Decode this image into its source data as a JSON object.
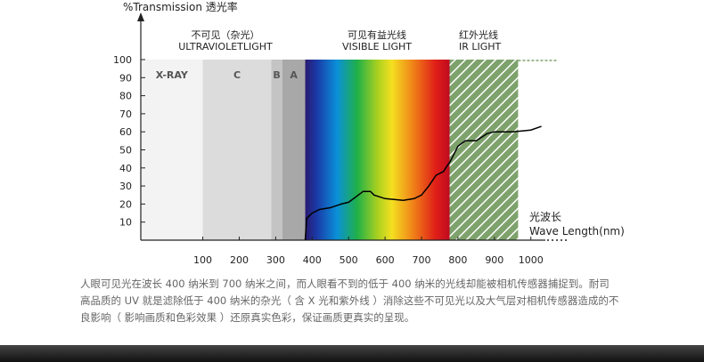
{
  "chart_data": {
    "type": "line",
    "y_label": "%Transmission 透光率",
    "x_label_lines": [
      "光波长",
      "Wave Length(nm)"
    ],
    "headers": [
      [
        "不可见（杂光）",
        "ULTRAVIOLETLIGHT"
      ],
      [
        "可见有益光线",
        "VISIBLE LIGHT"
      ],
      [
        "红外光线",
        "IR LIGHT"
      ]
    ],
    "regions": [
      {
        "label": "X-RAY",
        "start": -70,
        "end": 100,
        "color": "#f3f3f3"
      },
      {
        "label": "C",
        "start": 100,
        "end": 288,
        "color": "#dcdcdc"
      },
      {
        "label": "B",
        "start": 288,
        "end": 318,
        "color": "#c4c4c4"
      },
      {
        "label": "A",
        "start": 318,
        "end": 381,
        "color": "#a8a8a8"
      }
    ],
    "spectrum": {
      "start": 381,
      "end": 777
    },
    "ir": {
      "start": 777,
      "end": 965,
      "color": "#7ea26c"
    },
    "x": [
      381,
      385,
      400,
      420,
      450,
      480,
      500,
      520,
      540,
      560,
      570,
      600,
      650,
      680,
      700,
      720,
      740,
      760,
      780,
      800,
      820,
      850,
      880,
      900,
      950,
      1000,
      1029
    ],
    "values": [
      0,
      12,
      15,
      17,
      18,
      20,
      21,
      24,
      27,
      27,
      25,
      23,
      22,
      23,
      25,
      30,
      36,
      38,
      44,
      52,
      55,
      55,
      59,
      60,
      60,
      61,
      63
    ],
    "color": "#000000",
    "xlim": [
      -70,
      1250
    ],
    "ylim": [
      0,
      100
    ],
    "xticks": [
      100,
      200,
      300,
      400,
      500,
      600,
      700,
      800,
      900,
      1000
    ],
    "yticks": [
      10,
      20,
      30,
      40,
      50,
      60,
      70,
      80,
      90,
      100
    ]
  },
  "description": [
    "人眼可见光在波长 400 纳米到 700 纳米之间，而人眼看不到的低于 400 纳米的光线却能被相机传感器捕捉到。耐司",
    "高品质的 UV 就是滤除低于 400 纳米的杂光（ 含 X 光和紫外线 ）消除这些不可见光以及大气层对相机传感器造成的不",
    "良影响（ 影响画质和色彩效果 ）还原真实色彩，保证画质更真实的呈现。"
  ]
}
